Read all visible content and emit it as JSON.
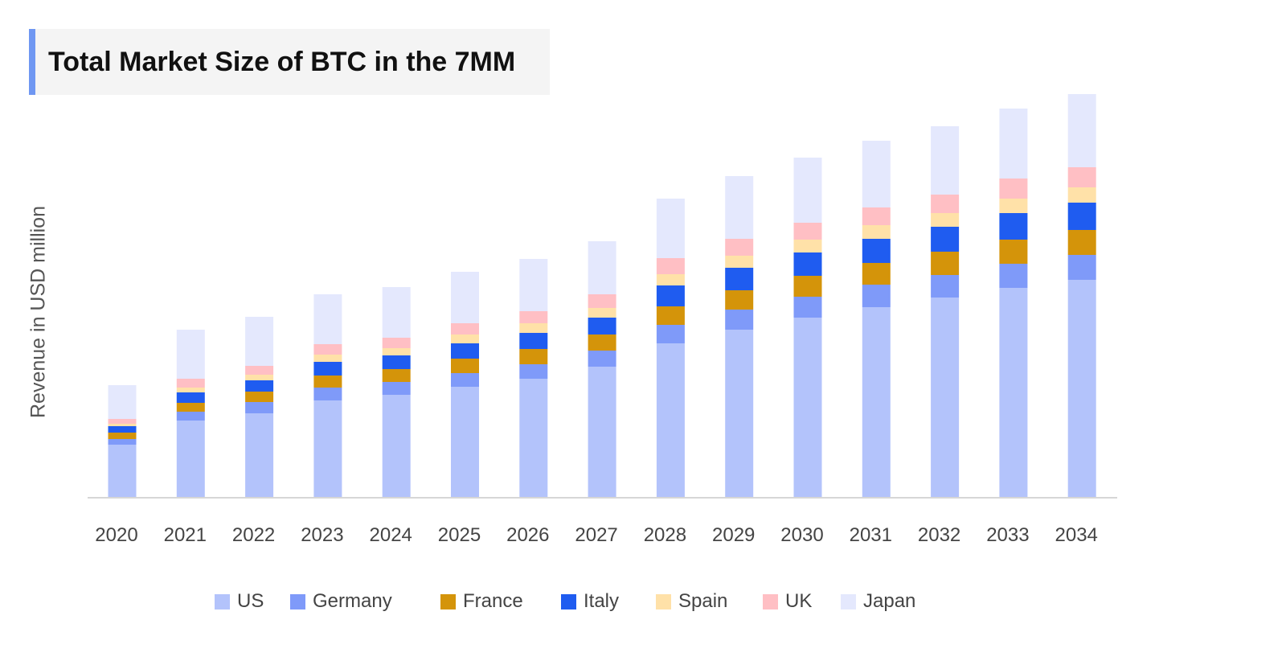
{
  "title": "Total Market Size of BTC in the 7MM",
  "chart_data": {
    "type": "bar",
    "stacked": true,
    "title": "Total Market Size of BTC in the 7MM",
    "xlabel": "",
    "ylabel": "Revenue in USD million",
    "ylim": [
      0,
      500
    ],
    "grid": false,
    "y_tick_labels_shown": false,
    "legend_position": "bottom",
    "categories": [
      "2020",
      "2021",
      "2022",
      "2023",
      "2024",
      "2025",
      "2026",
      "2027",
      "2028",
      "2029",
      "2030",
      "2031",
      "2032",
      "2033",
      "2034"
    ],
    "series": [
      {
        "name": "US",
        "color": "#b3c3fb",
        "values": [
          66,
          96,
          105,
          121,
          128,
          138,
          148,
          163,
          192,
          209,
          224,
          237,
          249,
          261,
          271
        ]
      },
      {
        "name": "Germany",
        "color": "#7f9af9",
        "values": [
          7,
          11,
          14,
          16,
          16,
          17,
          18,
          20,
          23,
          25,
          26,
          28,
          28,
          30,
          31
        ]
      },
      {
        "name": "France",
        "color": "#d4940a",
        "values": [
          8,
          11,
          13,
          15,
          16,
          18,
          19,
          20,
          23,
          24,
          26,
          27,
          29,
          30,
          31
        ]
      },
      {
        "name": "Italy",
        "color": "#1f5cf0",
        "values": [
          8,
          13,
          14,
          17,
          17,
          19,
          20,
          21,
          26,
          28,
          29,
          30,
          31,
          33,
          34
        ]
      },
      {
        "name": "Spain",
        "color": "#ffe1a8",
        "values": [
          3,
          6,
          7,
          9,
          9,
          11,
          12,
          12,
          14,
          15,
          16,
          17,
          17,
          18,
          19
        ]
      },
      {
        "name": "UK",
        "color": "#ffbfc4",
        "values": [
          6,
          11,
          11,
          13,
          13,
          14,
          15,
          17,
          20,
          21,
          21,
          22,
          23,
          25,
          25
        ]
      },
      {
        "name": "Japan",
        "color": "#e4e8fd",
        "values": [
          42,
          61,
          61,
          62,
          63,
          64,
          65,
          66,
          74,
          78,
          81,
          83,
          85,
          87,
          91
        ]
      }
    ]
  }
}
